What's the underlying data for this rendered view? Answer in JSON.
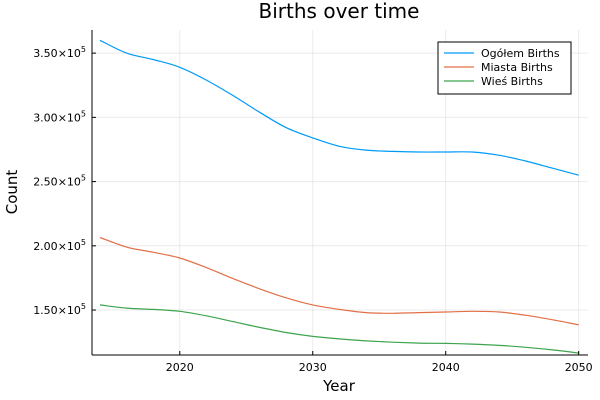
{
  "chart_data": {
    "type": "line",
    "title": "Births over time",
    "xlabel": "Year",
    "ylabel": "Count",
    "xlim": [
      2013.4,
      2050.7
    ],
    "ylim": [
      115000,
      368000
    ],
    "grid": true,
    "legend_position": "top-right",
    "x_ticks": [
      {
        "value": 2020,
        "label": "2020"
      },
      {
        "value": 2030,
        "label": "2030"
      },
      {
        "value": 2040,
        "label": "2040"
      },
      {
        "value": 2050,
        "label": "2050"
      }
    ],
    "y_ticks": [
      {
        "value": 150000,
        "mantissa": "1.50",
        "base": "×10",
        "exp": "5"
      },
      {
        "value": 200000,
        "mantissa": "2.00",
        "base": "×10",
        "exp": "5"
      },
      {
        "value": 250000,
        "mantissa": "2.50",
        "base": "×10",
        "exp": "5"
      },
      {
        "value": 300000,
        "mantissa": "3.00",
        "base": "×10",
        "exp": "5"
      },
      {
        "value": 350000,
        "mantissa": "3.50",
        "base": "×10",
        "exp": "5"
      }
    ],
    "x": [
      2014,
      2016,
      2018,
      2020,
      2022,
      2024,
      2026,
      2028,
      2030,
      2032,
      2034,
      2036,
      2038,
      2040,
      2042,
      2044,
      2046,
      2048,
      2050
    ],
    "series": [
      {
        "name": "Ogółem Births",
        "color": "#009af9",
        "values": [
          360000,
          350000,
          345000,
          339000,
          329000,
          317000,
          304000,
          292000,
          284000,
          277500,
          274500,
          273500,
          273000,
          273000,
          273000,
          270500,
          266000,
          260500,
          255000
        ]
      },
      {
        "name": "Miasta Births",
        "color": "#e26f46",
        "values": [
          206500,
          199000,
          195000,
          190500,
          183000,
          174500,
          166500,
          159500,
          154000,
          150500,
          148000,
          147500,
          148000,
          148500,
          149000,
          148500,
          146000,
          142500,
          138500
        ]
      },
      {
        "name": "Wieś Births",
        "color": "#3da44d",
        "values": [
          154000,
          151500,
          150500,
          149000,
          145500,
          141000,
          136500,
          132500,
          129500,
          127500,
          126000,
          125000,
          124300,
          124000,
          123500,
          122500,
          121000,
          119000,
          116500
        ]
      }
    ]
  }
}
